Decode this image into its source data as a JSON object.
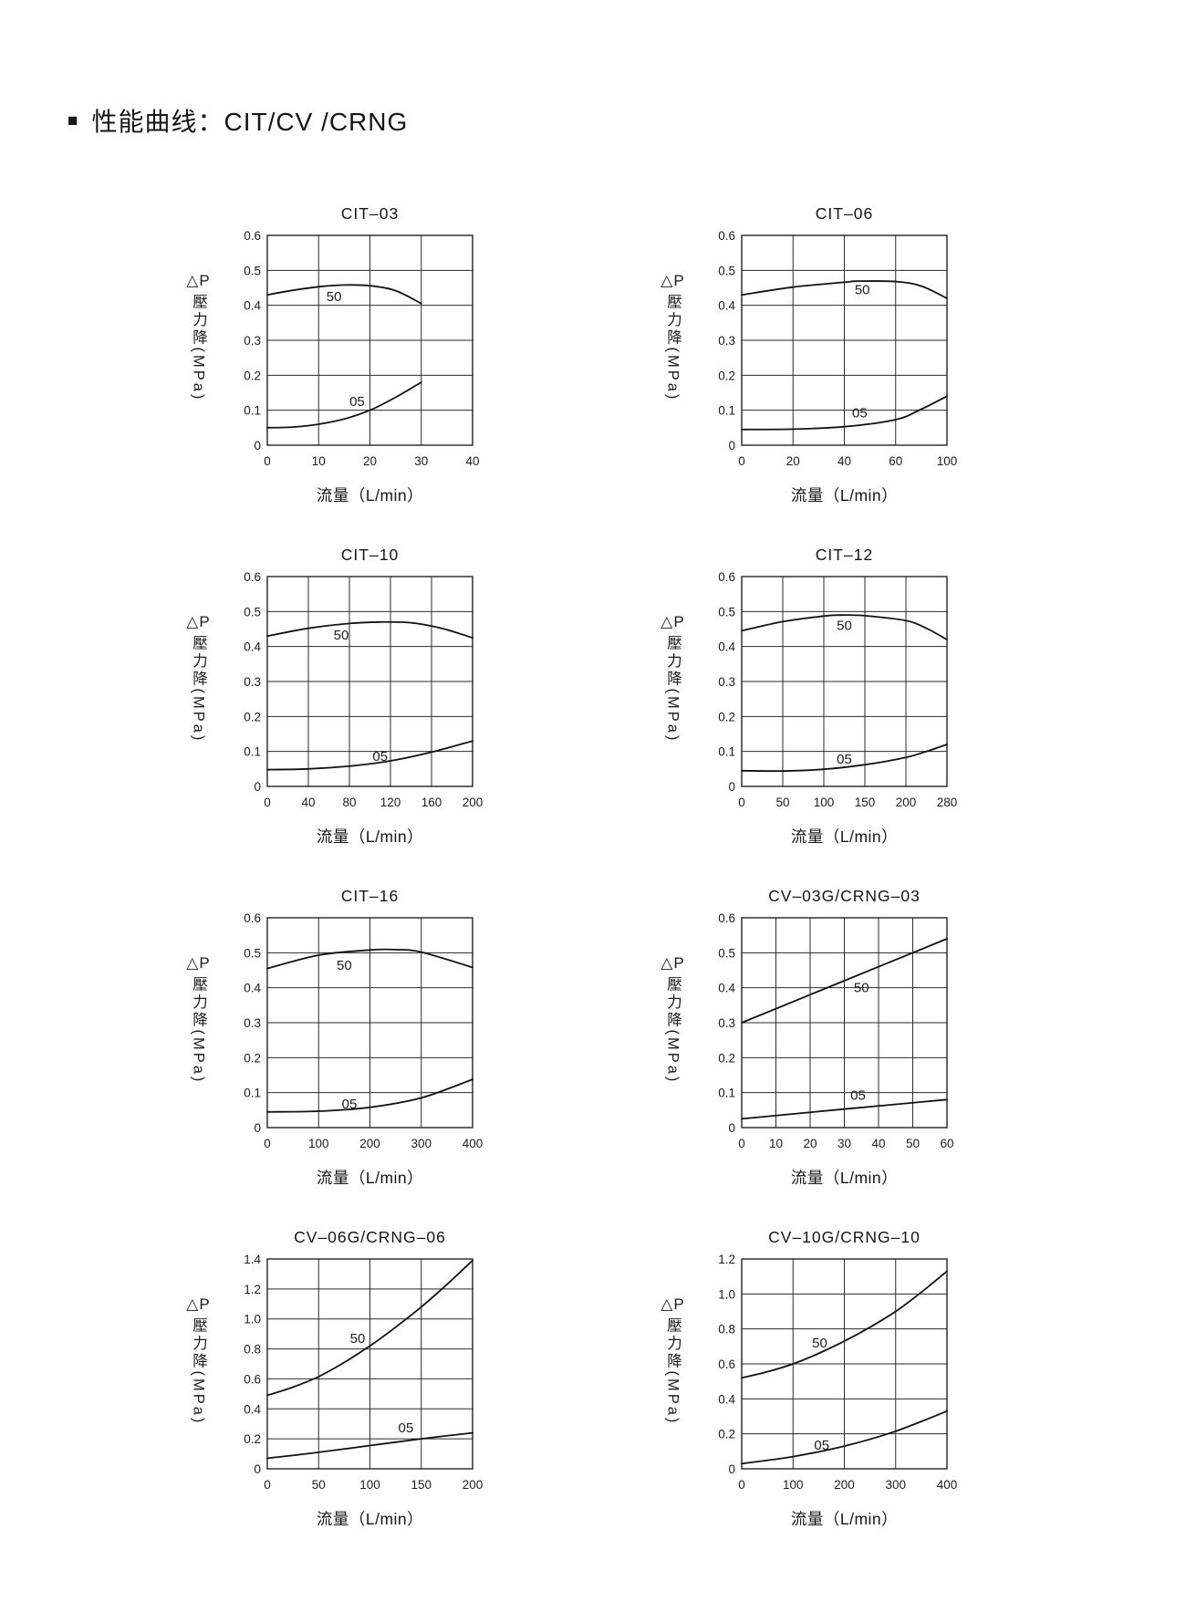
{
  "page": {
    "bullet": "■",
    "title": "性能曲线：CIT/CV /CRNG"
  },
  "chart_data": [
    {
      "type": "line",
      "title": "CIT–03",
      "xlabel": "流量（L/min）",
      "ylabel_dp": "△P",
      "ylabel_text": "壓力降(MPa)",
      "x_ticks": [
        0,
        10,
        20,
        30,
        40
      ],
      "y_ticks": [
        "0",
        "0.1",
        "0.2",
        "0.3",
        "0.4",
        "0.5",
        "0.6"
      ],
      "xlim": [
        0,
        40
      ],
      "ylim": [
        0,
        0.6
      ],
      "grid": true,
      "series": [
        {
          "name": "50",
          "x": [
            0,
            5,
            10,
            15,
            20,
            25,
            30
          ],
          "y": [
            0.43,
            0.443,
            0.453,
            0.458,
            0.456,
            0.442,
            0.405
          ],
          "label_at": [
            13,
            0.425
          ]
        },
        {
          "name": "05",
          "x": [
            0,
            5,
            10,
            15,
            20,
            25,
            30
          ],
          "y": [
            0.05,
            0.052,
            0.06,
            0.075,
            0.1,
            0.137,
            0.18
          ],
          "label_at": [
            17.5,
            0.125
          ]
        }
      ]
    },
    {
      "type": "line",
      "title": "CIT–06",
      "xlabel": "流量（L/min）",
      "ylabel_dp": "△P",
      "ylabel_text": "壓力降(MPa)",
      "x_ticks": [
        0,
        20,
        40,
        60,
        100
      ],
      "y_ticks": [
        "0",
        "0.1",
        "0.2",
        "0.3",
        "0.4",
        "0.5",
        "0.6"
      ],
      "xlim": [
        0,
        100
      ],
      "ylim": [
        0,
        0.6
      ],
      "grid": true,
      "series": [
        {
          "name": "50",
          "x": [
            0,
            20,
            40,
            45,
            60,
            80,
            100
          ],
          "y": [
            0.43,
            0.452,
            0.466,
            0.469,
            0.468,
            0.455,
            0.42
          ],
          "label_at": [
            47,
            0.445
          ]
        },
        {
          "name": "05",
          "x": [
            0,
            20,
            40,
            60,
            80,
            100
          ],
          "y": [
            0.045,
            0.046,
            0.053,
            0.073,
            0.103,
            0.14
          ],
          "label_at": [
            46,
            0.092
          ]
        }
      ]
    },
    {
      "type": "line",
      "title": "CIT–10",
      "xlabel": "流量（L/min）",
      "ylabel_dp": "△P",
      "ylabel_text": "壓力降(MPa)",
      "x_ticks": [
        0,
        40,
        80,
        120,
        160,
        200
      ],
      "y_ticks": [
        "0",
        "0.1",
        "0.2",
        "0.3",
        "0.4",
        "0.5",
        "0.6"
      ],
      "xlim": [
        0,
        200
      ],
      "ylim": [
        0,
        0.6
      ],
      "grid": true,
      "series": [
        {
          "name": "50",
          "x": [
            0,
            40,
            80,
            110,
            140,
            170,
            200
          ],
          "y": [
            0.43,
            0.452,
            0.466,
            0.47,
            0.468,
            0.452,
            0.425
          ],
          "label_at": [
            72,
            0.433
          ]
        },
        {
          "name": "05",
          "x": [
            0,
            40,
            80,
            120,
            160,
            200
          ],
          "y": [
            0.048,
            0.05,
            0.058,
            0.073,
            0.098,
            0.13
          ],
          "label_at": [
            110,
            0.086
          ]
        }
      ]
    },
    {
      "type": "line",
      "title": "CIT–12",
      "xlabel": "流量（L/min）",
      "ylabel_dp": "△P",
      "ylabel_text": "壓力降(MPa)",
      "x_ticks": [
        0,
        50,
        100,
        150,
        200,
        280
      ],
      "y_ticks": [
        "0",
        "0.1",
        "0.2",
        "0.3",
        "0.4",
        "0.5",
        "0.6"
      ],
      "xlim": [
        0,
        280
      ],
      "ylim": [
        0,
        0.6
      ],
      "grid": true,
      "series": [
        {
          "name": "50",
          "x": [
            0,
            50,
            100,
            120,
            150,
            200,
            240,
            280
          ],
          "y": [
            0.445,
            0.471,
            0.487,
            0.49,
            0.488,
            0.474,
            0.452,
            0.42
          ],
          "label_at": [
            125,
            0.46
          ]
        },
        {
          "name": "05",
          "x": [
            0,
            50,
            100,
            150,
            200,
            240,
            280
          ],
          "y": [
            0.045,
            0.044,
            0.049,
            0.062,
            0.083,
            0.1,
            0.12
          ],
          "label_at": [
            125,
            0.078
          ]
        }
      ]
    },
    {
      "type": "line",
      "title": "CIT–16",
      "xlabel": "流量（L/min）",
      "ylabel_dp": "△P",
      "ylabel_text": "壓力降(MPa)",
      "x_ticks": [
        0,
        100,
        200,
        300,
        400
      ],
      "y_ticks": [
        "0",
        "0.1",
        "0.2",
        "0.3",
        "0.4",
        "0.5",
        "0.6"
      ],
      "xlim": [
        0,
        400
      ],
      "ylim": [
        0,
        0.6
      ],
      "grid": true,
      "series": [
        {
          "name": "50",
          "x": [
            0,
            100,
            200,
            250,
            300,
            400
          ],
          "y": [
            0.455,
            0.493,
            0.508,
            0.509,
            0.502,
            0.458
          ],
          "label_at": [
            150,
            0.465
          ]
        },
        {
          "name": "05",
          "x": [
            0,
            100,
            200,
            300,
            400
          ],
          "y": [
            0.045,
            0.047,
            0.058,
            0.085,
            0.138
          ],
          "label_at": [
            160,
            0.068
          ]
        }
      ]
    },
    {
      "type": "line",
      "title": "CV–03G/CRNG–03",
      "xlabel": "流量（L/min）",
      "ylabel_dp": "△P",
      "ylabel_text": "壓力降(MPa)",
      "x_ticks": [
        0,
        10,
        20,
        30,
        40,
        50,
        60
      ],
      "y_ticks": [
        "0",
        "0.1",
        "0.2",
        "0.3",
        "0.4",
        "0.5",
        "0.6"
      ],
      "xlim": [
        0,
        60
      ],
      "ylim": [
        0,
        0.6
      ],
      "grid": true,
      "series": [
        {
          "name": "50",
          "x": [
            0,
            30,
            60
          ],
          "y": [
            0.3,
            0.42,
            0.54
          ],
          "label_at": [
            35,
            0.4
          ]
        },
        {
          "name": "05",
          "x": [
            0,
            30,
            60
          ],
          "y": [
            0.025,
            0.053,
            0.08
          ],
          "label_at": [
            34,
            0.092
          ]
        }
      ]
    },
    {
      "type": "line",
      "title": "CV–06G/CRNG–06",
      "xlabel": "流量（L/min）",
      "ylabel_dp": "△P",
      "ylabel_text": "壓力降(MPa)",
      "x_ticks": [
        0,
        50,
        100,
        150,
        200
      ],
      "y_ticks": [
        "0",
        "0.2",
        "0.4",
        "0.6",
        "0.8",
        "1.0",
        "1.2",
        "1.4"
      ],
      "xlim": [
        0,
        200
      ],
      "ylim": [
        0,
        1.4
      ],
      "grid": true,
      "series": [
        {
          "name": "50",
          "x": [
            0,
            25,
            50,
            75,
            100,
            125,
            150,
            175,
            200
          ],
          "y": [
            0.49,
            0.545,
            0.615,
            0.71,
            0.82,
            0.945,
            1.08,
            1.23,
            1.39
          ],
          "label_at": [
            88,
            0.87
          ]
        },
        {
          "name": "05",
          "x": [
            0,
            50,
            100,
            150,
            200
          ],
          "y": [
            0.07,
            0.11,
            0.155,
            0.2,
            0.24
          ],
          "label_at": [
            135,
            0.275
          ]
        }
      ]
    },
    {
      "type": "line",
      "title": "CV–10G/CRNG–10",
      "xlabel": "流量（L/min）",
      "ylabel_dp": "△P",
      "ylabel_text": "壓力降(MPa)",
      "x_ticks": [
        0,
        100,
        200,
        300,
        400
      ],
      "y_ticks": [
        "0",
        "0.2",
        "0.4",
        "0.6",
        "0.8",
        "1.0",
        "1.2"
      ],
      "xlim": [
        0,
        400
      ],
      "ylim": [
        0,
        1.2
      ],
      "grid": true,
      "series": [
        {
          "name": "50",
          "x": [
            0,
            50,
            100,
            150,
            200,
            250,
            300,
            350,
            400
          ],
          "y": [
            0.52,
            0.555,
            0.6,
            0.66,
            0.73,
            0.81,
            0.9,
            1.01,
            1.13
          ],
          "label_at": [
            152,
            0.72
          ]
        },
        {
          "name": "05",
          "x": [
            0,
            100,
            200,
            300,
            400
          ],
          "y": [
            0.03,
            0.07,
            0.13,
            0.215,
            0.33
          ],
          "label_at": [
            156,
            0.135
          ]
        }
      ]
    }
  ]
}
